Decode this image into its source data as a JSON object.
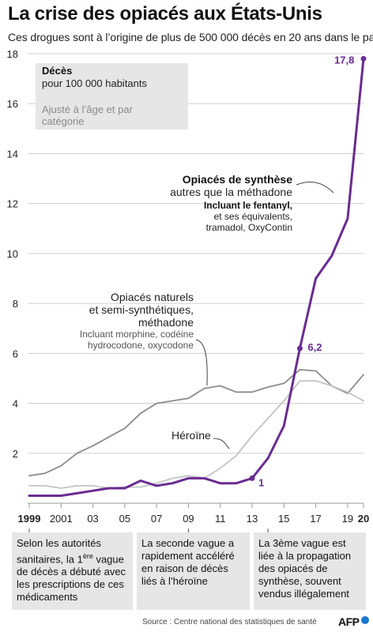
{
  "header": {
    "title": "La crise des opiacés aux États-Unis",
    "subtitle": "Ces drogues sont à l’origine de plus de 500 000 décès en 20 ans dans le pays"
  },
  "legend_box": {
    "line1": "Décès",
    "line2": "pour 100 000 habitants",
    "line3": "Ajusté à l’âge et par catégorie",
    "color": "#e6e6e6"
  },
  "annotations": {
    "synthetic": {
      "title": "Opiacés de synthèse",
      "subtitle": "autres que la méthadone",
      "fentanyl": "Incluant le fentanyl,",
      "equivalents_1": "et ses équivalents,",
      "equivalents_2": "tramadol, OxyContin"
    },
    "natural": {
      "line1": "Opiacés naturels",
      "line2": "et semi-synthétiques,",
      "line3": "méthadone",
      "inc1": "Incluant morphine, codéine",
      "inc2": "hydrocodone, oxycodone"
    },
    "heroin": "Héroïne"
  },
  "colors": {
    "synthetic": "#6a2c91",
    "natural": "#8c8c8c",
    "heroin": "#c4c4c4",
    "grid": "#cfcfcf"
  },
  "waves": {
    "w1_a": "Selon les autorités sanitaires, la 1",
    "w1_sup": "ère",
    "w1_b": " vague de décès a débuté avec les prescriptions de ces médicaments",
    "w2": "La seconde vague a rapidement accéléré en raison de décès liés à l’héroïne",
    "w3": "La 3ème vague est liée à la propagation des opiacés de synthèse, souvent vendus illégalement"
  },
  "footer": {
    "source": "Source : Centre national des statistiques de santé",
    "logo": "AFP"
  },
  "chart_data": {
    "type": "line",
    "title": "La crise des opiacés aux États-Unis",
    "subtitle": "Ces drogues sont à l’origine de plus de 500 000 décès en 20 ans dans le pays",
    "ylabel": "Décès pour 100 000 habitants",
    "xlim": [
      1999,
      2020
    ],
    "ylim": [
      0,
      18
    ],
    "yticks": [
      2,
      4,
      6,
      8,
      10,
      12,
      14,
      16,
      18
    ],
    "xticks": [
      {
        "value": 1999,
        "label": "1999",
        "bold": true
      },
      {
        "value": 2001,
        "label": "2001"
      },
      {
        "value": 2003,
        "label": "03"
      },
      {
        "value": 2005,
        "label": "05"
      },
      {
        "value": 2007,
        "label": "07"
      },
      {
        "value": 2009,
        "label": "09"
      },
      {
        "value": 2011,
        "label": "11"
      },
      {
        "value": 2013,
        "label": "13"
      },
      {
        "value": 2015,
        "label": "15"
      },
      {
        "value": 2017,
        "label": "17"
      },
      {
        "value": 2019,
        "label": "19"
      },
      {
        "value": 2020,
        "label": "20",
        "bold": true
      }
    ],
    "grid": true,
    "series": [
      {
        "name": "Opiacés naturels et semi-synthétiques, méthadone",
        "color": "#8c8c8c",
        "x": [
          1999,
          2000,
          2001,
          2002,
          2003,
          2004,
          2005,
          2006,
          2007,
          2008,
          2009,
          2010,
          2011,
          2012,
          2013,
          2014,
          2015,
          2016,
          2017,
          2018,
          2019,
          2020
        ],
        "y": [
          1.1,
          1.2,
          1.5,
          2.0,
          2.3,
          2.65,
          3.0,
          3.6,
          4.0,
          4.1,
          4.2,
          4.6,
          4.7,
          4.45,
          4.45,
          4.65,
          4.8,
          5.35,
          5.3,
          4.7,
          4.4,
          5.15
        ]
      },
      {
        "name": "Héroïne",
        "color": "#c4c4c4",
        "x": [
          1999,
          2000,
          2001,
          2002,
          2003,
          2004,
          2005,
          2006,
          2007,
          2008,
          2009,
          2010,
          2011,
          2012,
          2013,
          2014,
          2015,
          2016,
          2017,
          2018,
          2019,
          2020
        ],
        "y": [
          0.7,
          0.7,
          0.6,
          0.7,
          0.7,
          0.6,
          0.65,
          0.65,
          0.8,
          1.0,
          1.1,
          1.0,
          1.4,
          1.9,
          2.7,
          3.4,
          4.1,
          4.9,
          4.9,
          4.7,
          4.45,
          4.1
        ]
      },
      {
        "name": "Opiacés de synthèse autres que la méthadone",
        "color": "#6a2c91",
        "x": [
          1999,
          2000,
          2001,
          2002,
          2003,
          2004,
          2005,
          2006,
          2007,
          2008,
          2009,
          2010,
          2011,
          2012,
          2013,
          2014,
          2015,
          2016,
          2017,
          2018,
          2019,
          2020
        ],
        "y": [
          0.3,
          0.3,
          0.3,
          0.4,
          0.5,
          0.6,
          0.6,
          0.9,
          0.7,
          0.8,
          1.0,
          1.0,
          0.8,
          0.8,
          1.0,
          1.8,
          3.1,
          6.2,
          9.0,
          9.9,
          11.4,
          17.8
        ]
      }
    ],
    "data_labels": [
      {
        "series": "Opiacés de synthèse autres que la méthadone",
        "x": 2013,
        "y": 1.0,
        "label": "1"
      },
      {
        "series": "Opiacés de synthèse autres que la méthadone",
        "x": 2016,
        "y": 6.2,
        "label": "6,2"
      },
      {
        "series": "Opiacés de synthèse autres que la méthadone",
        "x": 2020,
        "y": 17.8,
        "label": "17,8"
      }
    ]
  }
}
